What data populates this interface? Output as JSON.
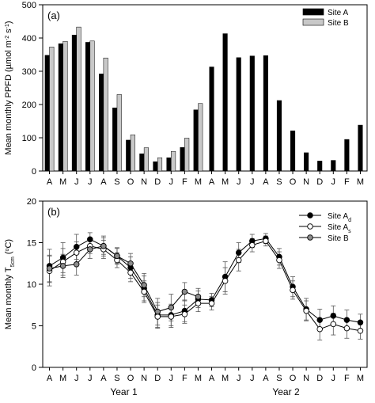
{
  "months": [
    "A",
    "M",
    "J",
    "J",
    "A",
    "S",
    "O",
    "N",
    "D",
    "J",
    "F",
    "M",
    "A",
    "M",
    "J",
    "J",
    "A",
    "S",
    "O",
    "N",
    "D",
    "J",
    "F",
    "M"
  ],
  "year_labels": [
    "Year 1",
    "Year 2"
  ],
  "chart_data": [
    {
      "type": "bar",
      "panel_label": "(a)",
      "ylabel_main": "Mean monthly PPFD (",
      "ylabel_unit": "µmol m",
      "ylim": [
        0,
        500
      ],
      "yticks": [
        0,
        100,
        200,
        300,
        400,
        500
      ],
      "categories": [
        "A",
        "M",
        "J",
        "J",
        "A",
        "S",
        "O",
        "N",
        "D",
        "J",
        "F",
        "M",
        "A",
        "M",
        "J",
        "J",
        "A",
        "S",
        "O",
        "N",
        "D",
        "J",
        "F",
        "M"
      ],
      "legend_position": "top-right",
      "series": [
        {
          "name": "Site A",
          "color": "#000000",
          "values": [
            348,
            383,
            409,
            387,
            292,
            190,
            93,
            52,
            28,
            40,
            71,
            184,
            313,
            413,
            341,
            346,
            347,
            212,
            121,
            55,
            30,
            32,
            95,
            138
          ]
        },
        {
          "name": "Site B",
          "color": "#c8c8c8",
          "values": [
            373,
            390,
            433,
            391,
            340,
            230,
            109,
            70,
            40,
            59,
            99,
            203,
            null,
            null,
            null,
            null,
            null,
            null,
            null,
            null,
            null,
            null,
            null,
            null
          ]
        }
      ]
    },
    {
      "type": "line",
      "panel_label": "(b)",
      "ylabel_main": "Mean monthly T",
      "ylabel_sub": "5cm",
      "ylabel_unit": "C)",
      "ylim": [
        0,
        20
      ],
      "yticks": [
        0,
        5,
        10,
        15,
        20
      ],
      "categories": [
        "A",
        "M",
        "J",
        "J",
        "A",
        "S",
        "O",
        "N",
        "D",
        "J",
        "F",
        "M",
        "A",
        "M",
        "J",
        "J",
        "A",
        "S",
        "O",
        "N",
        "D",
        "J",
        "F",
        "M"
      ],
      "legend_position": "top-right",
      "series": [
        {
          "name": "Site A",
          "name_sub": "d",
          "marker": "filled",
          "color": "#000000",
          "values": [
            12.2,
            13.2,
            14.5,
            15.4,
            14.6,
            13.4,
            12.0,
            9.5,
            6.3,
            6.3,
            6.8,
            8.2,
            8.1,
            10.9,
            13.8,
            15.2,
            15.5,
            13.3,
            9.7,
            7.0,
            5.7,
            6.2,
            5.7,
            5.4
          ],
          "errors": [
            2.0,
            1.8,
            1.5,
            0.8,
            1.2,
            1.0,
            1.3,
            1.5,
            1.5,
            1.3,
            1.3,
            1.0,
            0.8,
            1.8,
            1.2,
            0.8,
            0.6,
            1.0,
            1.2,
            1.3,
            1.3,
            1.2,
            1.2,
            1.0
          ]
        },
        {
          "name": "Site A",
          "name_sub": "s",
          "marker": "open",
          "color": "#000000",
          "values": [
            11.6,
            12.7,
            13.8,
            14.6,
            14.2,
            12.9,
            11.4,
            9.1,
            6.1,
            6.1,
            6.4,
            7.7,
            7.7,
            10.4,
            12.9,
            14.7,
            15.2,
            12.9,
            9.3,
            6.8,
            4.6,
            5.2,
            4.7,
            4.4
          ],
          "errors": [
            1.8,
            1.6,
            1.3,
            0.9,
            1.1,
            0.9,
            1.1,
            1.3,
            1.4,
            1.3,
            1.1,
            1.0,
            0.8,
            1.6,
            1.3,
            0.8,
            0.6,
            1.0,
            1.1,
            1.2,
            1.3,
            1.3,
            1.2,
            1.0
          ]
        },
        {
          "name": "Site B",
          "marker": "gray",
          "color": "#8c8c8c",
          "values": [
            11.9,
            12.2,
            12.4,
            14.2,
            14.6,
            13.4,
            12.5,
            9.9,
            6.7,
            7.2,
            9.1,
            8.5,
            null,
            null,
            null,
            null,
            null,
            null,
            null,
            null,
            null,
            null,
            null,
            null
          ],
          "errors": [
            1.6,
            1.4,
            1.3,
            1.1,
            1.0,
            0.9,
            1.2,
            1.4,
            1.6,
            1.6,
            1.1,
            1.0,
            null,
            null,
            null,
            null,
            null,
            null,
            null,
            null,
            null,
            null,
            null,
            null
          ]
        }
      ]
    }
  ]
}
